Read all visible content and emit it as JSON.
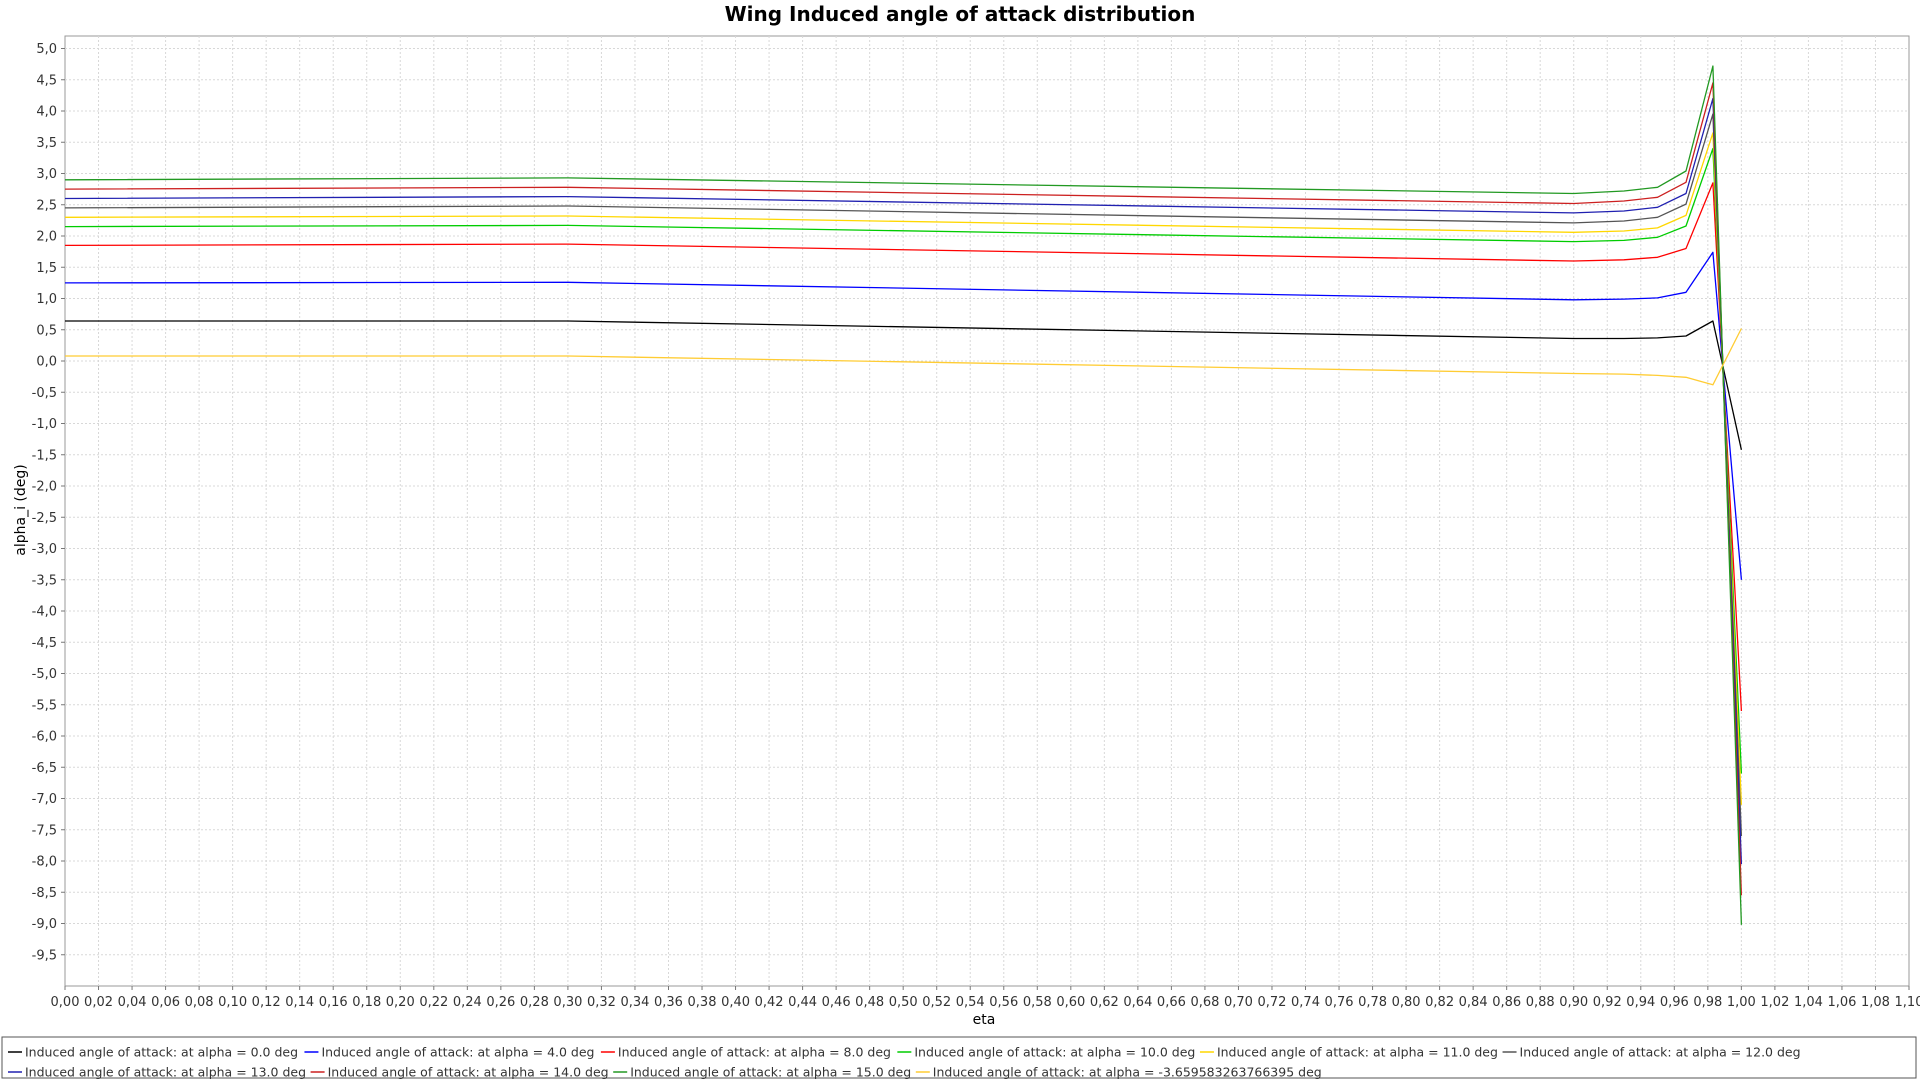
{
  "chart_data": {
    "type": "line",
    "title": "Wing Induced angle of attack distribution",
    "xlabel": "eta",
    "ylabel": "alpha_i (deg)",
    "xlim": [
      0.0,
      1.1
    ],
    "ylim": [
      -10.0,
      5.2
    ],
    "x_ticks": [
      "0,00",
      "0,02",
      "0,04",
      "0,06",
      "0,08",
      "0,10",
      "0,12",
      "0,14",
      "0,16",
      "0,18",
      "0,20",
      "0,22",
      "0,24",
      "0,26",
      "0,28",
      "0,30",
      "0,32",
      "0,34",
      "0,36",
      "0,38",
      "0,40",
      "0,42",
      "0,44",
      "0,46",
      "0,48",
      "0,50",
      "0,52",
      "0,54",
      "0,56",
      "0,58",
      "0,60",
      "0,62",
      "0,64",
      "0,66",
      "0,68",
      "0,70",
      "0,72",
      "0,74",
      "0,76",
      "0,78",
      "0,80",
      "0,82",
      "0,84",
      "0,86",
      "0,88",
      "0,90",
      "0,92",
      "0,94",
      "0,96",
      "0,98",
      "1,00",
      "1,02",
      "1,04",
      "1,06",
      "1,08",
      "1,10"
    ],
    "y_ticks": [
      "5,0",
      "4,5",
      "4,0",
      "3,5",
      "3,0",
      "2,5",
      "2,0",
      "1,5",
      "1,0",
      "0,5",
      "0,0",
      "-0,5",
      "-1,0",
      "-1,5",
      "-2,0",
      "-2,5",
      "-3,0",
      "-3,5",
      "-4,0",
      "-4,5",
      "-5,0",
      "-5,5",
      "-6,0",
      "-6,5",
      "-7,0",
      "-7,5",
      "-8,0",
      "-8,5",
      "-9,0",
      "-9,5"
    ],
    "grid": true,
    "legend_position": "bottom",
    "x": [
      0.0,
      0.3,
      0.9,
      0.93,
      0.95,
      0.967,
      0.983,
      1.0
    ],
    "series": [
      {
        "name": "Induced angle of attack: at alpha = 0.0 deg",
        "color": "#000000",
        "values": [
          0.64,
          0.64,
          0.36,
          0.36,
          0.37,
          0.4,
          0.64,
          -1.42
        ]
      },
      {
        "name": "Induced angle of attack: at alpha = 4.0 deg",
        "color": "#0000ff",
        "values": [
          1.25,
          1.26,
          0.98,
          0.99,
          1.01,
          1.1,
          1.74,
          -3.5
        ]
      },
      {
        "name": "Induced angle of attack: at alpha = 8.0 deg",
        "color": "#ff0000",
        "values": [
          1.85,
          1.87,
          1.6,
          1.62,
          1.66,
          1.8,
          2.85,
          -5.6
        ]
      },
      {
        "name": "Induced angle of attack: at alpha = 10.0 deg",
        "color": "#00cc00",
        "values": [
          2.15,
          2.17,
          1.91,
          1.93,
          1.98,
          2.16,
          3.4,
          -6.6
        ]
      },
      {
        "name": "Induced angle of attack: at alpha = 11.0 deg",
        "color": "#ffd700",
        "values": [
          2.3,
          2.32,
          2.06,
          2.08,
          2.13,
          2.33,
          3.65,
          -7.1
        ]
      },
      {
        "name": "Induced angle of attack: at alpha = 12.0 deg",
        "color": "#555555",
        "values": [
          2.45,
          2.48,
          2.21,
          2.24,
          2.3,
          2.51,
          3.95,
          -7.6
        ]
      },
      {
        "name": "Induced angle of attack: at alpha = 13.0 deg",
        "color": "#2020b0",
        "values": [
          2.6,
          2.63,
          2.37,
          2.4,
          2.46,
          2.68,
          4.2,
          -8.05
        ]
      },
      {
        "name": "Induced angle of attack: at alpha = 14.0 deg",
        "color": "#cc2020",
        "values": [
          2.75,
          2.78,
          2.52,
          2.56,
          2.62,
          2.86,
          4.45,
          -8.55
        ]
      },
      {
        "name": "Induced angle of attack: at alpha = 15.0 deg",
        "color": "#229922",
        "values": [
          2.9,
          2.93,
          2.68,
          2.72,
          2.78,
          3.04,
          4.72,
          -9.02
        ]
      },
      {
        "name": "Induced angle of attack: at alpha = -3.659583263766395 deg",
        "color": "#ffcc33",
        "values": [
          0.08,
          0.08,
          -0.2,
          -0.21,
          -0.23,
          -0.26,
          -0.38,
          0.52
        ]
      }
    ]
  }
}
